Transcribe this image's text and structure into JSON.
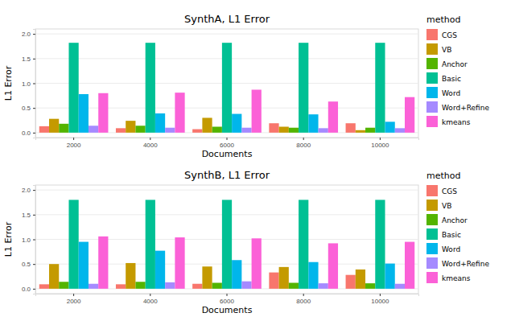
{
  "chart_data": [
    {
      "type": "bar",
      "title": "SynthA, L1 Error",
      "x_label": "Documents",
      "y_label": "L1 Error",
      "categories": [
        "2000",
        "4000",
        "6000",
        "8000",
        "10000"
      ],
      "series": [
        {
          "name": "CGS",
          "color": "#F8766D",
          "values": [
            0.13,
            0.09,
            0.07,
            0.19,
            0.19
          ]
        },
        {
          "name": "VB",
          "color": "#C49A00",
          "values": [
            0.28,
            0.24,
            0.3,
            0.12,
            0.05
          ]
        },
        {
          "name": "Anchor",
          "color": "#53B400",
          "values": [
            0.18,
            0.14,
            0.12,
            0.1,
            0.1
          ]
        },
        {
          "name": "Basic",
          "color": "#00C094",
          "values": [
            1.82,
            1.82,
            1.82,
            1.82,
            1.82
          ]
        },
        {
          "name": "Word",
          "color": "#00B6EB",
          "values": [
            0.78,
            0.39,
            0.38,
            0.37,
            0.22
          ]
        },
        {
          "name": "Word+Refine",
          "color": "#A58AFF",
          "values": [
            0.14,
            0.1,
            0.1,
            0.09,
            0.09
          ]
        },
        {
          "name": "kmeans",
          "color": "#FB61D7",
          "values": [
            0.8,
            0.81,
            0.87,
            0.63,
            0.72
          ]
        }
      ],
      "ylim": [
        -0.1,
        2.1
      ],
      "yticks": [
        {
          "value": 0,
          "label": "0.0"
        },
        {
          "value": 0.5,
          "label": "0.5"
        },
        {
          "value": 1,
          "label": "1.0"
        },
        {
          "value": 1.5,
          "label": "1.5"
        },
        {
          "value": 2,
          "label": "2.0"
        }
      ],
      "grid": true,
      "legend": "right",
      "legend_title": "method"
    },
    {
      "type": "bar",
      "title": "SynthB, L1 Error",
      "x_label": "Documents",
      "y_label": "L1 Error",
      "categories": [
        "2000",
        "4000",
        "6000",
        "8000",
        "10000"
      ],
      "series": [
        {
          "name": "CGS",
          "color": "#F8766D",
          "values": [
            0.09,
            0.09,
            0.1,
            0.33,
            0.28
          ]
        },
        {
          "name": "VB",
          "color": "#C49A00",
          "values": [
            0.5,
            0.52,
            0.45,
            0.44,
            0.39
          ]
        },
        {
          "name": "Anchor",
          "color": "#53B400",
          "values": [
            0.14,
            0.14,
            0.12,
            0.12,
            0.11
          ]
        },
        {
          "name": "Basic",
          "color": "#00C094",
          "values": [
            1.8,
            1.8,
            1.8,
            1.8,
            1.8
          ]
        },
        {
          "name": "Word",
          "color": "#00B6EB",
          "values": [
            0.95,
            0.77,
            0.58,
            0.54,
            0.51
          ]
        },
        {
          "name": "Word+Refine",
          "color": "#A58AFF",
          "values": [
            0.1,
            0.13,
            0.15,
            0.11,
            0.1
          ]
        },
        {
          "name": "kmeans",
          "color": "#FB61D7",
          "values": [
            1.06,
            1.04,
            1.02,
            0.92,
            0.95
          ]
        }
      ],
      "ylim": [
        -0.1,
        2.1
      ],
      "yticks": [
        {
          "value": 0,
          "label": "0.0"
        },
        {
          "value": 0.5,
          "label": "0.5"
        },
        {
          "value": 1,
          "label": "1.0"
        },
        {
          "value": 1.5,
          "label": "1.5"
        },
        {
          "value": 2,
          "label": "2.0"
        }
      ],
      "grid": true,
      "legend": "right",
      "legend_title": "method"
    }
  ]
}
